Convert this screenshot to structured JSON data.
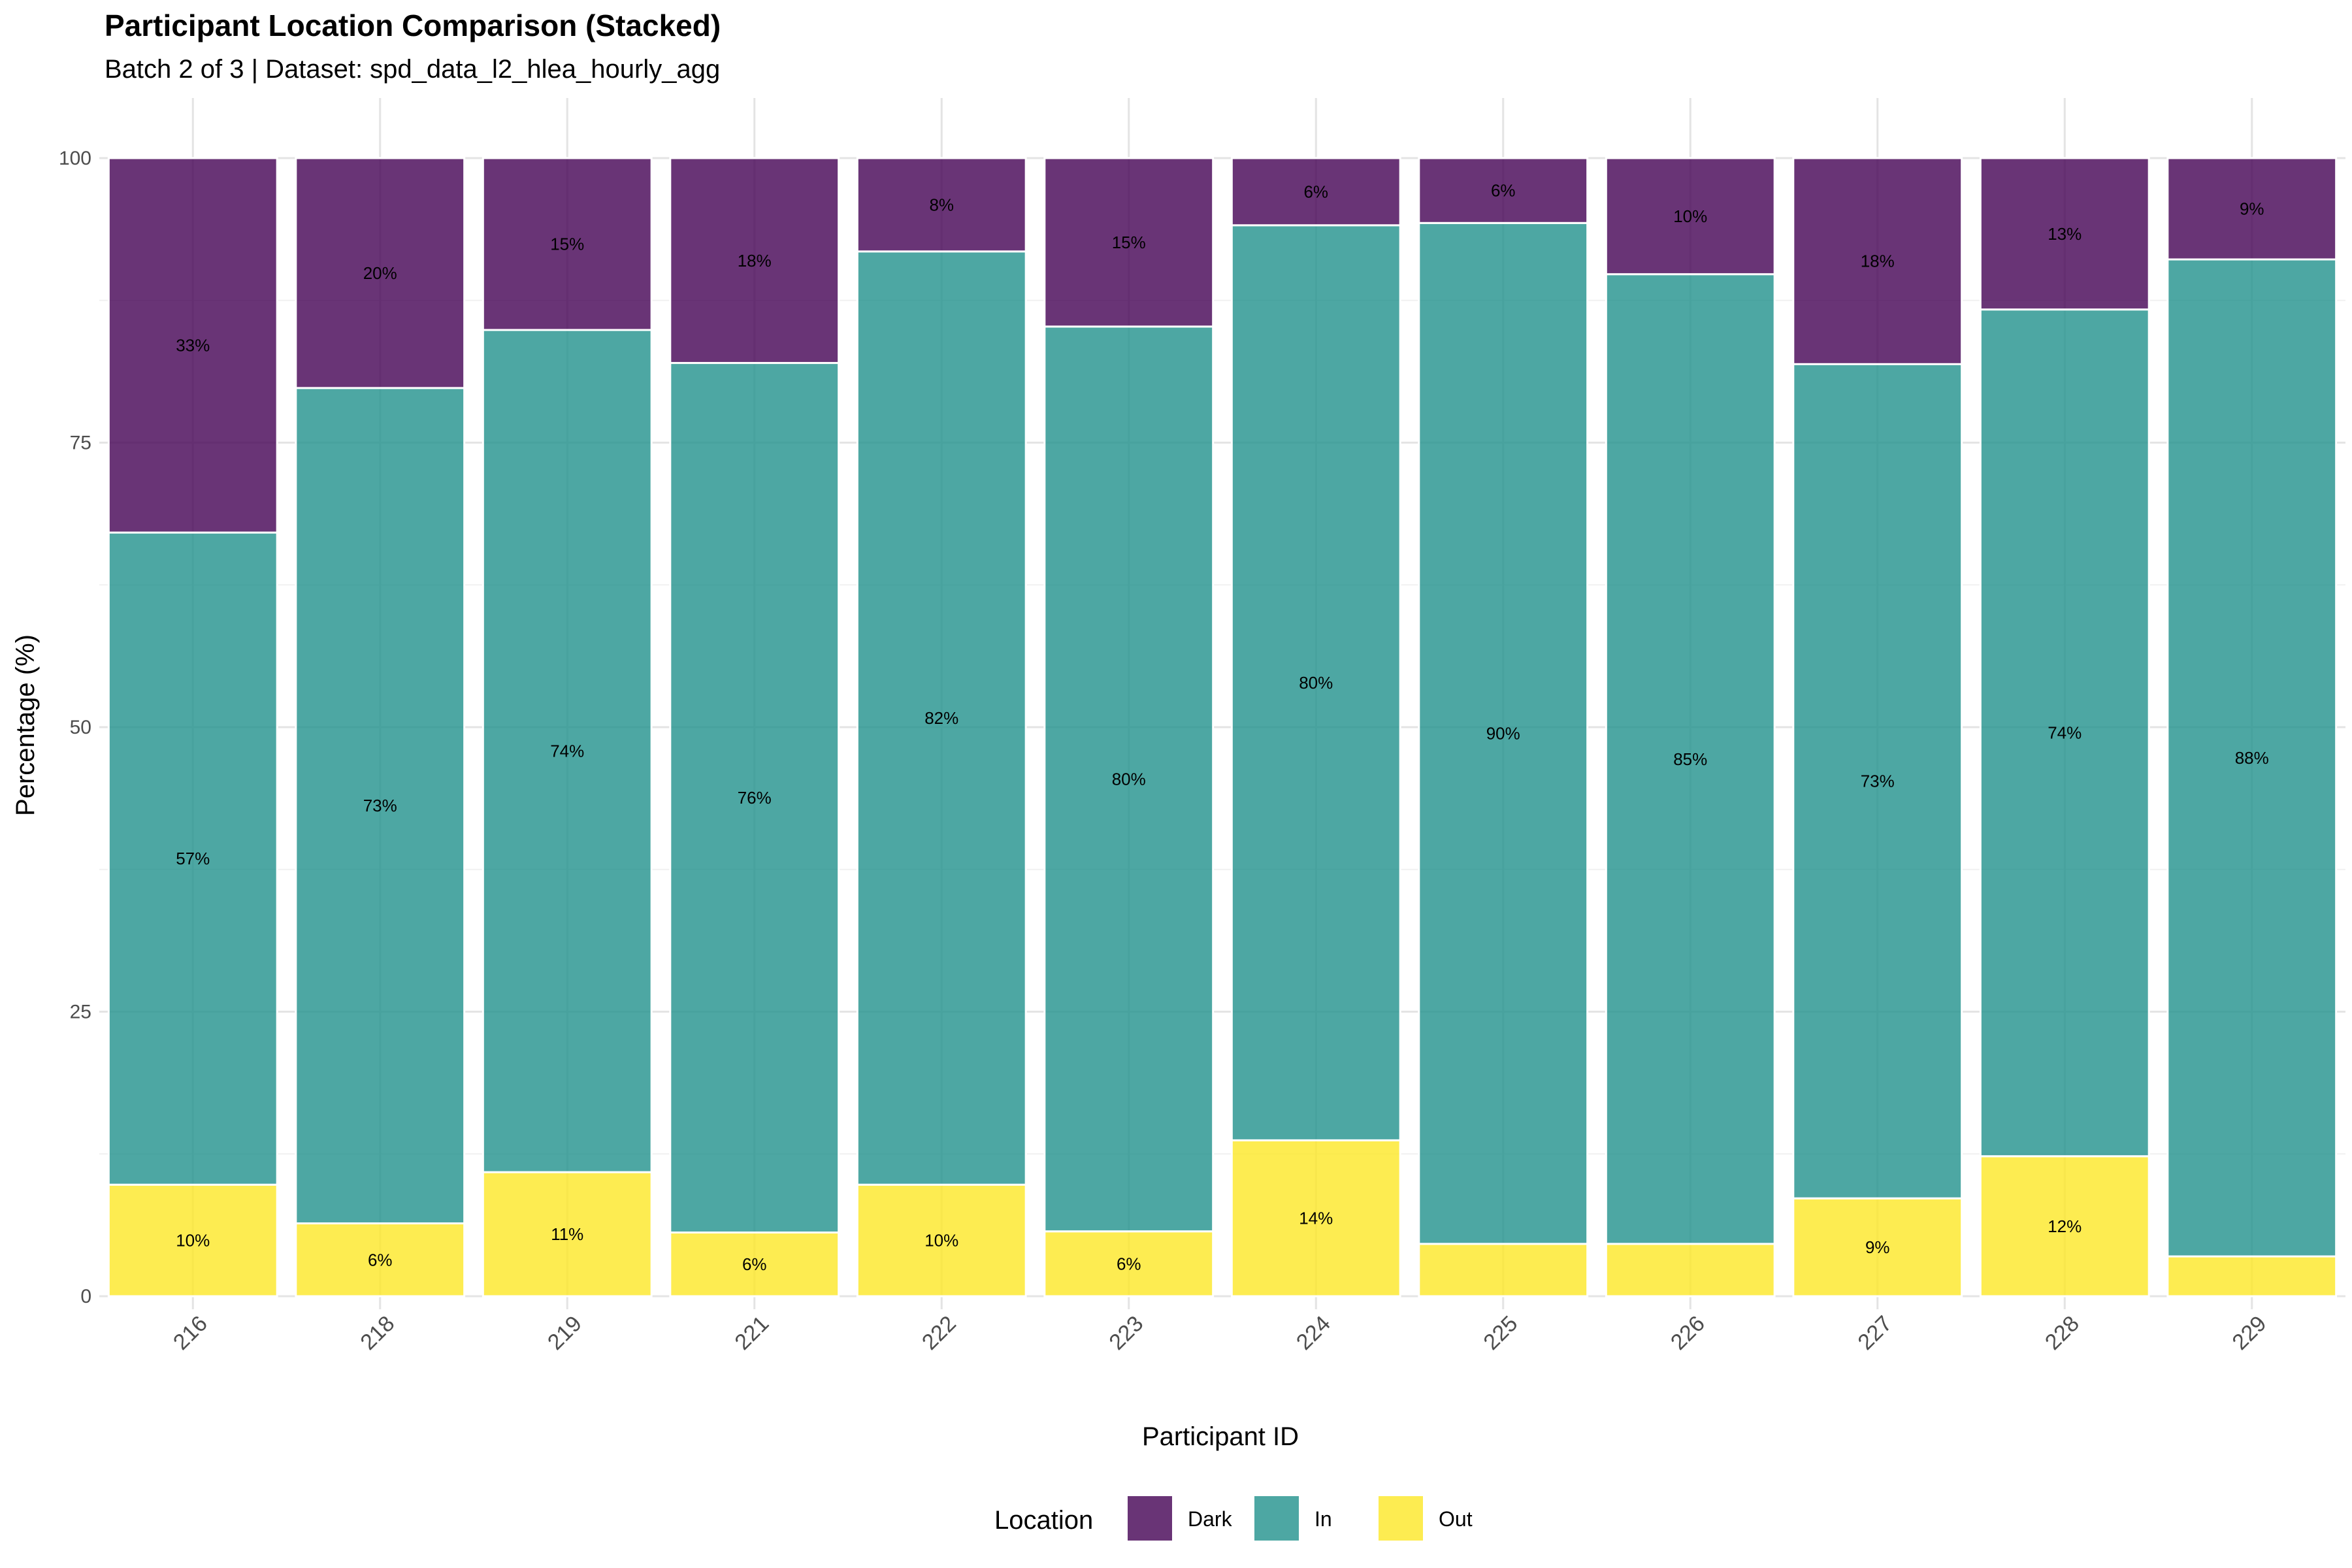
{
  "title": "Participant Location Comparison (Stacked)",
  "subtitle": "Batch 2 of 3 | Dataset: spd_data_l2_hlea_hourly_agg",
  "chart_data": {
    "type": "bar",
    "stacked": true,
    "xlabel": "Participant ID",
    "ylabel": "Percentage (%)",
    "ylim": [
      0,
      100
    ],
    "yticks": [
      "0",
      "25",
      "50",
      "75",
      "100"
    ],
    "grid": true,
    "legend": {
      "title": "Location",
      "position": "bottom"
    },
    "categories": [
      "216",
      "218",
      "219",
      "221",
      "222",
      "223",
      "224",
      "225",
      "226",
      "227",
      "228",
      "229"
    ],
    "series": [
      {
        "name": "Out",
        "color": "#FDE725",
        "values": [
          9.8,
          6.4,
          10.9,
          5.6,
          9.8,
          5.7,
          13.7,
          4.6,
          4.6,
          8.6,
          12.3,
          3.5
        ],
        "labels": [
          "10%",
          "6%",
          "11%",
          "6%",
          "10%",
          "6%",
          "14%",
          "",
          "",
          "9%",
          "12%",
          ""
        ]
      },
      {
        "name": "In",
        "color": "#21918C",
        "values": [
          57.3,
          73.4,
          74.0,
          76.4,
          82.0,
          79.5,
          80.4,
          89.7,
          85.2,
          73.3,
          74.4,
          87.6
        ],
        "labels": [
          "57%",
          "73%",
          "74%",
          "76%",
          "82%",
          "80%",
          "80%",
          "90%",
          "85%",
          "73%",
          "74%",
          "88%"
        ]
      },
      {
        "name": "Dark",
        "color": "#440154",
        "values": [
          32.9,
          20.2,
          15.1,
          18.0,
          8.2,
          14.8,
          5.9,
          5.7,
          10.2,
          18.1,
          13.3,
          8.9
        ],
        "labels": [
          "33%",
          "20%",
          "15%",
          "18%",
          "8%",
          "15%",
          "6%",
          "6%",
          "10%",
          "18%",
          "13%",
          "9%"
        ]
      }
    ]
  }
}
